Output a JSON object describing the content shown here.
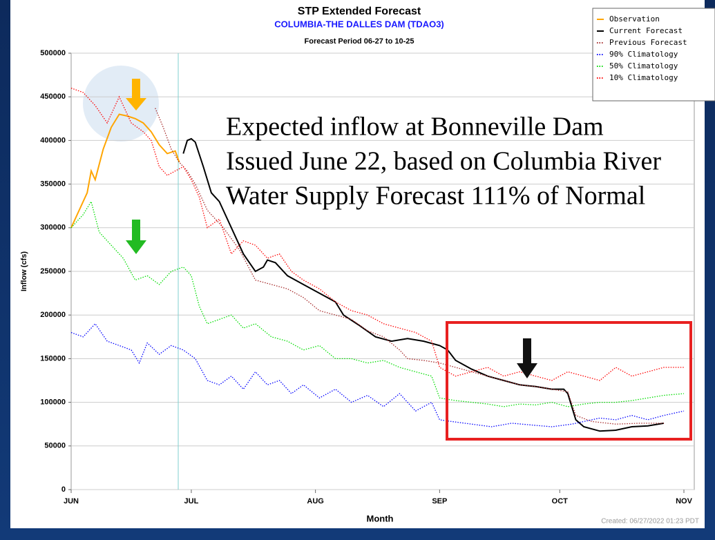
{
  "chart_data": {
    "type": "line",
    "title": "STP Extended Forecast",
    "subtitle": "COLUMBIA-THE DALLES DAM (TDAO3)",
    "period": "Forecast Period 06-27 to 10-25",
    "x_label": "Month",
    "y_label": "Inflow (cfs)",
    "created": "Created: 06/27/2022 01:23 PDT",
    "annotations": [
      "Expected inflow at Bonneville Dam",
      "Issued June 22, based on Columbia River",
      "Water Supply Forecast 111% of Normal"
    ],
    "xlim": [
      0,
      153
    ],
    "xticks": [
      {
        "value": 0,
        "label": "JUN"
      },
      {
        "value": 30,
        "label": "JUL"
      },
      {
        "value": 61,
        "label": "AUG"
      },
      {
        "value": 92,
        "label": "SEP"
      },
      {
        "value": 122,
        "label": "OCT"
      },
      {
        "value": 153,
        "label": "NOV"
      }
    ],
    "ylim": [
      0,
      500000
    ],
    "yticks": [
      0,
      50000,
      100000,
      150000,
      200000,
      250000,
      300000,
      350000,
      400000,
      450000,
      500000
    ],
    "grid": true,
    "legend": "top-right",
    "series": [
      {
        "name": "Observation",
        "color": "#ffa500",
        "style": "solid",
        "x": [
          0,
          2,
          4,
          5,
          6,
          8,
          10,
          12,
          14,
          16,
          18,
          20,
          22,
          24,
          26,
          27
        ],
        "values": [
          300000,
          320000,
          340000,
          365000,
          355000,
          390000,
          415000,
          430000,
          428000,
          425000,
          420000,
          410000,
          395000,
          385000,
          388000,
          375000
        ]
      },
      {
        "name": "Current Forecast",
        "color": "#000000",
        "style": "solid",
        "x": [
          28,
          29,
          30,
          31,
          33,
          35,
          37,
          40,
          43,
          46,
          48,
          49,
          51,
          54,
          58,
          62,
          66,
          68,
          72,
          76,
          80,
          84,
          88,
          92,
          94,
          96,
          100,
          104,
          108,
          112,
          116,
          120,
          123,
          124,
          126,
          128,
          132,
          136,
          140,
          144,
          148
        ],
        "values": [
          385000,
          400000,
          402000,
          398000,
          370000,
          340000,
          330000,
          300000,
          270000,
          250000,
          255000,
          263000,
          260000,
          245000,
          235000,
          225000,
          215000,
          200000,
          188000,
          175000,
          170000,
          173000,
          170000,
          165000,
          160000,
          148000,
          138000,
          130000,
          125000,
          120000,
          118000,
          115000,
          115000,
          110000,
          80000,
          72000,
          67000,
          68000,
          72000,
          73000,
          76000
        ]
      },
      {
        "name": "Previous Forecast",
        "color": "#a52a2a",
        "style": "dotted",
        "x": [
          21,
          23,
          25,
          27,
          29,
          31,
          34,
          38,
          42,
          46,
          50,
          54,
          58,
          62,
          66,
          70,
          74,
          78,
          82,
          84,
          88,
          92,
          96,
          100,
          104,
          108,
          112,
          116,
          120,
          124,
          126,
          130,
          136,
          142,
          148
        ],
        "values": [
          437000,
          415000,
          390000,
          375000,
          365000,
          350000,
          320000,
          300000,
          275000,
          240000,
          235000,
          230000,
          220000,
          205000,
          200000,
          195000,
          182000,
          175000,
          160000,
          150000,
          148000,
          145000,
          140000,
          135000,
          130000,
          125000,
          120000,
          118000,
          115000,
          112000,
          85000,
          78000,
          75000,
          76000,
          76000
        ]
      },
      {
        "name": "90% Climatology",
        "color": "#0000ff",
        "style": "dotted",
        "x": [
          0,
          3,
          6,
          9,
          12,
          15,
          17,
          19,
          22,
          25,
          28,
          31,
          34,
          37,
          40,
          43,
          46,
          49,
          52,
          55,
          58,
          62,
          66,
          70,
          74,
          78,
          82,
          86,
          90,
          92,
          95,
          100,
          105,
          110,
          115,
          120,
          125,
          128,
          132,
          136,
          140,
          144,
          148,
          153
        ],
        "values": [
          180000,
          175000,
          190000,
          170000,
          165000,
          160000,
          145000,
          168000,
          155000,
          165000,
          160000,
          150000,
          125000,
          120000,
          130000,
          115000,
          135000,
          120000,
          125000,
          110000,
          120000,
          105000,
          115000,
          100000,
          108000,
          95000,
          110000,
          90000,
          100000,
          80000,
          78000,
          75000,
          72000,
          76000,
          74000,
          72000,
          75000,
          78000,
          82000,
          80000,
          85000,
          80000,
          85000,
          90000
        ]
      },
      {
        "name": "50% Climatology",
        "color": "#00dd00",
        "style": "dotted",
        "x": [
          0,
          3,
          5,
          7,
          10,
          13,
          16,
          19,
          22,
          25,
          28,
          30,
          32,
          34,
          37,
          40,
          43,
          46,
          50,
          54,
          58,
          62,
          66,
          70,
          74,
          78,
          82,
          86,
          90,
          92,
          96,
          100,
          104,
          108,
          112,
          116,
          120,
          124,
          128,
          132,
          136,
          140,
          144,
          148,
          153
        ],
        "values": [
          300000,
          315000,
          330000,
          295000,
          280000,
          265000,
          240000,
          245000,
          235000,
          250000,
          255000,
          245000,
          210000,
          190000,
          195000,
          200000,
          185000,
          190000,
          175000,
          170000,
          160000,
          165000,
          150000,
          150000,
          145000,
          148000,
          140000,
          135000,
          130000,
          105000,
          102000,
          100000,
          98000,
          95000,
          98000,
          97000,
          100000,
          95000,
          98000,
          100000,
          100000,
          102000,
          105000,
          108000,
          110000
        ]
      },
      {
        "name": "10% Climatology",
        "color": "#ff0000",
        "style": "dotted",
        "x": [
          0,
          3,
          6,
          9,
          12,
          15,
          18,
          20,
          22,
          24,
          26,
          28,
          30,
          32,
          34,
          37,
          40,
          43,
          46,
          49,
          52,
          55,
          58,
          62,
          66,
          70,
          74,
          78,
          82,
          86,
          90,
          92,
          96,
          100,
          104,
          108,
          112,
          116,
          120,
          124,
          128,
          132,
          136,
          140,
          144,
          148,
          153
        ],
        "values": [
          460000,
          455000,
          440000,
          420000,
          450000,
          420000,
          410000,
          400000,
          370000,
          360000,
          365000,
          370000,
          355000,
          335000,
          300000,
          310000,
          270000,
          285000,
          280000,
          265000,
          270000,
          250000,
          240000,
          230000,
          215000,
          205000,
          200000,
          190000,
          185000,
          180000,
          170000,
          140000,
          130000,
          135000,
          140000,
          130000,
          135000,
          130000,
          125000,
          135000,
          130000,
          125000,
          140000,
          130000,
          135000,
          140000,
          140000
        ]
      }
    ]
  }
}
